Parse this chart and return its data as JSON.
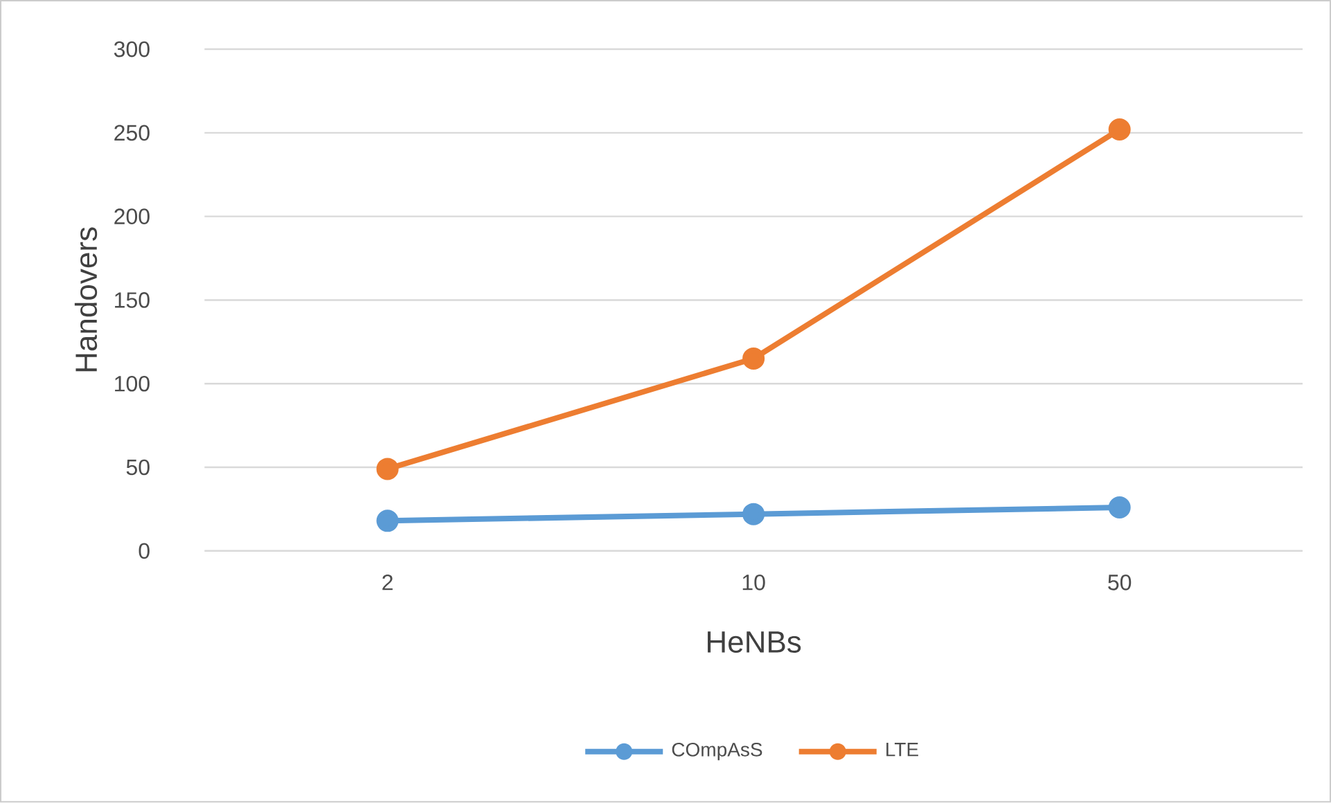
{
  "chart_data": {
    "type": "line",
    "xlabel": "HeNBs",
    "ylabel": "Handovers",
    "categories": [
      "2",
      "10",
      "50"
    ],
    "series": [
      {
        "name": "COmpAsS",
        "color": "#5b9bd5",
        "values": [
          18,
          22,
          26
        ]
      },
      {
        "name": "LTE",
        "color": "#ed7d31",
        "values": [
          49,
          115,
          252
        ]
      }
    ],
    "ylim": [
      0,
      300
    ],
    "yticks": [
      0,
      50,
      100,
      150,
      200,
      250,
      300
    ],
    "grid": "y",
    "legend": "bottom",
    "marker": "circle",
    "line_style": "solid"
  }
}
